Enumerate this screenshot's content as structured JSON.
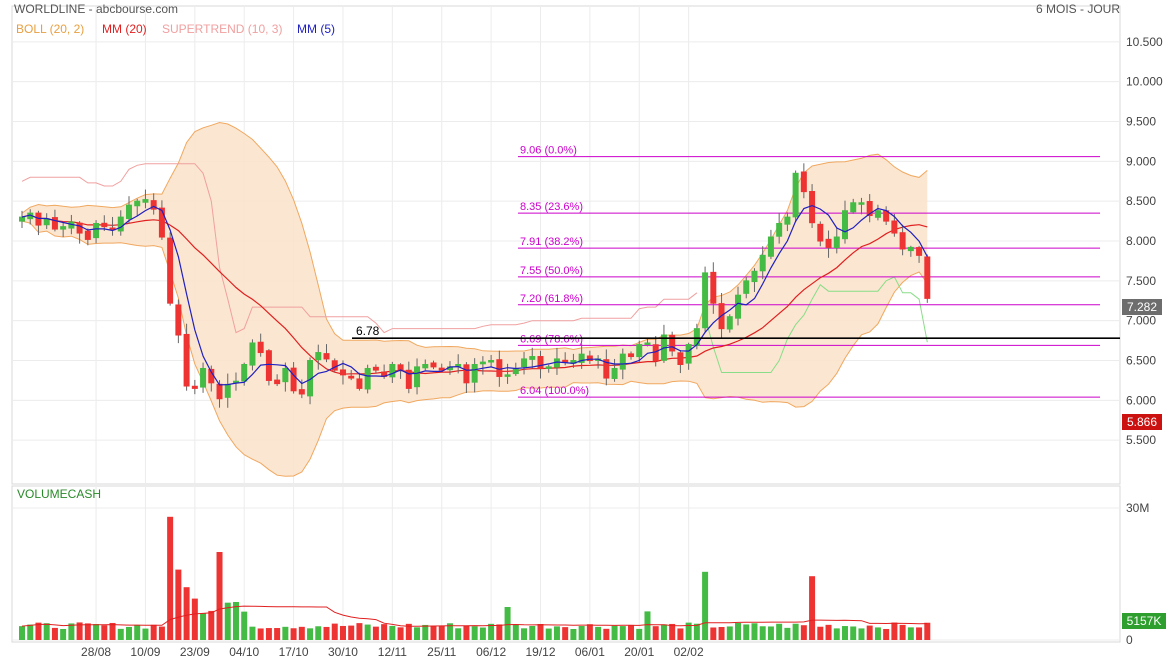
{
  "header": {
    "title": "WORLDLINE - abcbourse.com",
    "period": "6 MOIS - JOUR"
  },
  "legend": [
    {
      "label": "BOLL (20, 2)",
      "color": "#e8a040"
    },
    {
      "label": "MM (20)",
      "color": "#e02020"
    },
    {
      "label": "SUPERTREND (10, 3)",
      "color": "#f0a0a0"
    },
    {
      "label": "MM (5)",
      "color": "#2020c0"
    }
  ],
  "colors": {
    "up": "#44bb44",
    "down": "#ee3333",
    "fib": "#cc00cc",
    "boll_fill": "#fbe3cc",
    "boll_line": "#f0a860"
  },
  "chart_data": [
    {
      "type": "candlestick",
      "y_ticks": [
        "10.500",
        "10.000",
        "9.500",
        "9.000",
        "8.500",
        "8.000",
        "7.500",
        "7.000",
        "6.500",
        "6.000",
        "5.500"
      ],
      "y_tick_values": [
        10.5,
        10.0,
        9.5,
        9.0,
        8.5,
        8.0,
        7.5,
        7.0,
        6.5,
        6.0,
        5.5
      ],
      "ylim": [
        4.95,
        10.95
      ],
      "x_ticks": [
        "28/08",
        "10/09",
        "23/09",
        "04/10",
        "17/10",
        "30/10",
        "12/11",
        "25/11",
        "06/12",
        "19/12",
        "06/01",
        "20/01",
        "02/02"
      ],
      "x_tick_index": [
        6,
        12,
        18,
        24,
        30,
        36,
        42,
        48,
        54,
        60,
        66,
        72,
        78
      ],
      "last_price": "7.282",
      "supertrend_value": "5.866",
      "horizontal_level": {
        "label": "6.78",
        "value": 6.78
      },
      "fibonacci": [
        {
          "label": "9.06  (0.0%)",
          "value": 9.06
        },
        {
          "label": "8.35  (23.6%)",
          "value": 8.35
        },
        {
          "label": "7.91  (38.2%)",
          "value": 7.91
        },
        {
          "label": "7.55  (50.0%)",
          "value": 7.55
        },
        {
          "label": "7.20  (61.8%)",
          "value": 7.2
        },
        {
          "label": "6.69  (78.6%)",
          "value": 6.69
        },
        {
          "label": "6.04  (100.0%)",
          "value": 6.04
        }
      ],
      "close": [
        8.3,
        8.35,
        8.2,
        8.28,
        8.15,
        8.18,
        8.24,
        8.1,
        8.02,
        8.22,
        8.18,
        8.14,
        8.3,
        8.45,
        8.5,
        8.52,
        8.4,
        8.05,
        7.22,
        6.82,
        6.18,
        6.15,
        6.4,
        6.22,
        6.02,
        6.2,
        6.24,
        6.45,
        6.72,
        6.6,
        6.25,
        6.21,
        6.4,
        6.12,
        6.08,
        6.5,
        6.6,
        6.52,
        6.38,
        6.32,
        6.28,
        6.15,
        6.4,
        6.38,
        6.3,
        6.45,
        6.38,
        6.15,
        6.42,
        6.45,
        6.42,
        6.38,
        6.42,
        6.45,
        6.22,
        6.45,
        6.48,
        6.5,
        6.3,
        6.32,
        6.4,
        6.52,
        6.55,
        6.4,
        6.42,
        6.52,
        6.48,
        6.5,
        6.58,
        6.5,
        6.52,
        6.28,
        6.4,
        6.58,
        6.55,
        6.7,
        6.72,
        6.5,
        6.82,
        6.62,
        6.45,
        6.7,
        6.9,
        7.6,
        7.22,
        6.9,
        7.05,
        7.32,
        7.5,
        7.62,
        7.82,
        8.05,
        8.22,
        8.3,
        8.85,
        8.62,
        8.23,
        8.0,
        7.92,
        8.05,
        8.38,
        8.48,
        8.48,
        8.32,
        8.38,
        8.25,
        8.1,
        7.9,
        7.92,
        7.82,
        7.28
      ],
      "volume_ylim": [
        0,
        35000000
      ],
      "volume_ticks": [
        "30M",
        "0"
      ],
      "volume_tick_values": [
        30000000,
        0
      ],
      "volume_label": "VOLUMECASH",
      "last_volume": "5157K"
    }
  ]
}
